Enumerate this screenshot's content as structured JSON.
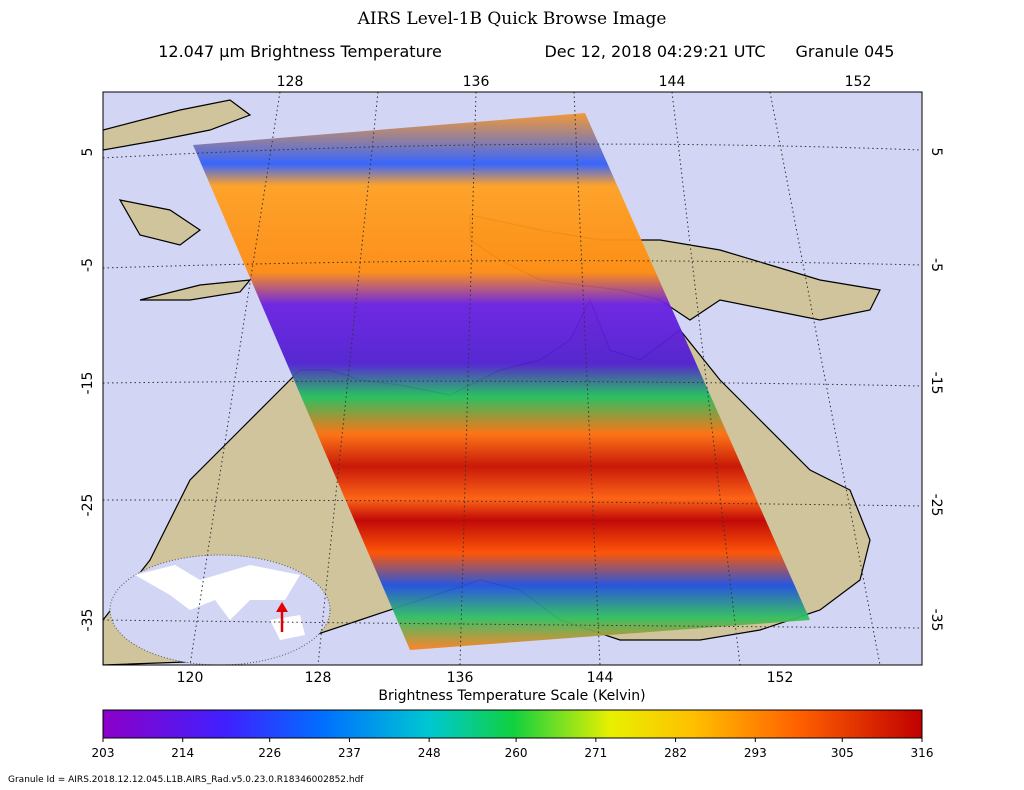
{
  "header": {
    "title": "AIRS Level-1B Quick Browse Image",
    "product": "12.047 μm Brightness Temperature",
    "datetime": "Dec 12, 2018 04:29:21 UTC",
    "granule": "Granule 045"
  },
  "map": {
    "top_lon_labels": [
      "128",
      "136",
      "144",
      "152"
    ],
    "bottom_lon_labels": [
      "120",
      "128",
      "136",
      "144",
      "152"
    ],
    "left_lat_labels": [
      "5",
      "-5",
      "-15",
      "-25",
      "-35"
    ],
    "right_lat_labels": [
      "5",
      "-5",
      "-15",
      "-25",
      "-35"
    ]
  },
  "colorbar": {
    "label": "Brightness Temperature Scale (Kelvin)",
    "range": [
      203,
      316
    ],
    "ticks": [
      203,
      214,
      226,
      237,
      248,
      260,
      271,
      282,
      293,
      305,
      316
    ]
  },
  "footer": {
    "granule_id": "Granule Id = AIRS.2018.12.12.045.L1B.AIRS_Rad.v5.0.23.0.R18346002852.hdf"
  }
}
